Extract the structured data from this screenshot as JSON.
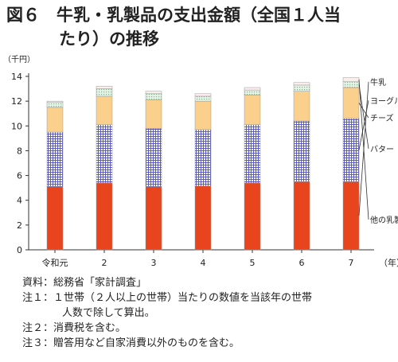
{
  "title": {
    "line1": "図６　牛乳・乳製品の支出金額（全国１人当",
    "line2": "たり）の推移"
  },
  "chart_data": {
    "type": "bar",
    "stacked": true,
    "y_unit": "（千円）",
    "x_unit": "（年）",
    "categories": [
      "令和元",
      "2",
      "3",
      "4",
      "5",
      "6",
      "7"
    ],
    "ylim": [
      0,
      14
    ],
    "yticks": [
      0,
      2,
      4,
      6,
      8,
      10,
      12,
      14
    ],
    "grid": false,
    "series": [
      {
        "name": "牛乳",
        "color": "#e8451f",
        "pattern": "solid",
        "values": [
          5.1,
          5.4,
          5.1,
          5.15,
          5.4,
          5.5,
          5.5
        ]
      },
      {
        "name": "ヨーグルト",
        "color": "#5a5ac8",
        "pattern": "grid",
        "values": [
          4.4,
          4.7,
          4.7,
          4.55,
          4.7,
          4.9,
          5.1
        ]
      },
      {
        "name": "チーズ",
        "color": "#fad08c",
        "pattern": "solid",
        "values": [
          2.0,
          2.3,
          2.3,
          2.3,
          2.4,
          2.4,
          2.5
        ]
      },
      {
        "name": "バター",
        "color": "#d6ecd8",
        "pattern": "dots",
        "values": [
          0.4,
          0.6,
          0.5,
          0.4,
          0.4,
          0.5,
          0.5
        ]
      },
      {
        "name": "他の乳製品",
        "color": "#fdeeee",
        "pattern": "solid",
        "values": [
          0.1,
          0.2,
          0.2,
          0.2,
          0.2,
          0.2,
          0.3
        ]
      }
    ],
    "legend": "right, labels with leader lines"
  },
  "notes": [
    "資料：総務省「家計調査」",
    "注１：１世帯（２人以上の世帯）当たりの数値を当該年の世帯",
    "人数で除して算出。",
    "注２：消費税を含む。",
    "注３：贈答用など自家消費以外のものを含む。"
  ]
}
